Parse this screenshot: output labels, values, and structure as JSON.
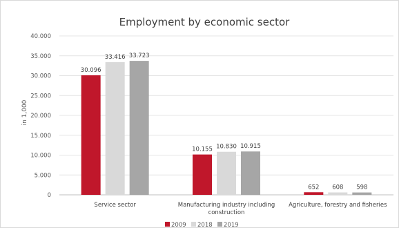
{
  "chart_data": {
    "type": "bar",
    "title": "Employment by economic sector",
    "ylabel": "in 1,000",
    "xlabel": "",
    "ylim": [
      0,
      40000
    ],
    "y_ticks": [
      "0",
      "5.000",
      "10.000",
      "15.000",
      "20.000",
      "25.000",
      "30.000",
      "35.000",
      "40.000"
    ],
    "categories": [
      [
        "Service sector"
      ],
      [
        "Manufacturing industry including",
        "construction"
      ],
      [
        "Agriculture, forestry and fisheries"
      ]
    ],
    "series": [
      {
        "name": "2009",
        "color": "#c0172b",
        "values": [
          30096,
          10155,
          652
        ],
        "labels": [
          "30.096",
          "10.155",
          "652"
        ]
      },
      {
        "name": "2018",
        "color": "#d9d9d9",
        "values": [
          33416,
          10830,
          608
        ],
        "labels": [
          "33.416",
          "10.830",
          "608"
        ]
      },
      {
        "name": "2019",
        "color": "#a6a6a6",
        "values": [
          33723,
          10915,
          598
        ],
        "labels": [
          "33.723",
          "10.915",
          "598"
        ]
      }
    ],
    "grid": true,
    "legend_position": "bottom"
  }
}
